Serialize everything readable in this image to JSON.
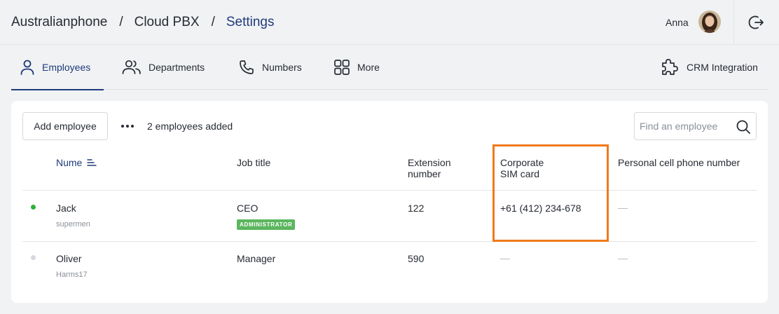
{
  "breadcrumb": {
    "items": [
      "Australianphone",
      "Cloud PBX",
      "Settings"
    ],
    "separator": "/"
  },
  "user": {
    "name": "Anna"
  },
  "tabs": [
    {
      "label": "Employees",
      "icon": "person-icon"
    },
    {
      "label": "Departments",
      "icon": "people-icon"
    },
    {
      "label": "Numbers",
      "icon": "phone-icon"
    },
    {
      "label": "More",
      "icon": "grid-icon"
    },
    {
      "label": "CRM Integration",
      "icon": "puzzle-icon"
    }
  ],
  "toolbar": {
    "add_label": "Add employee",
    "count_text": "2 employees added",
    "search_placeholder": "Find an employee"
  },
  "table": {
    "columns": [
      "Nume",
      "Job title",
      "Extension number",
      "Corporate SIM card",
      "Personal cell phone number"
    ],
    "column_lines": {
      "extension": [
        "Extension",
        "number"
      ],
      "sim": [
        "Corporate",
        "SIM card"
      ]
    },
    "rows": [
      {
        "name": "Jack",
        "username": "supermen",
        "job": "CEO",
        "badge": "ADMINISTRATOR",
        "extension": "122",
        "sim": "+61 (412) 234-678",
        "personal": "—",
        "status_color": "#2fb13a"
      },
      {
        "name": "Oliver",
        "username": "Harms17",
        "job": "Manager",
        "badge": "",
        "extension": "590",
        "sim": "—",
        "personal": "—",
        "status_color": "#d5d8de"
      }
    ]
  },
  "colors": {
    "accent": "#1f3a7a",
    "highlight": "#f07a1a",
    "badge": "#5bb65e"
  }
}
